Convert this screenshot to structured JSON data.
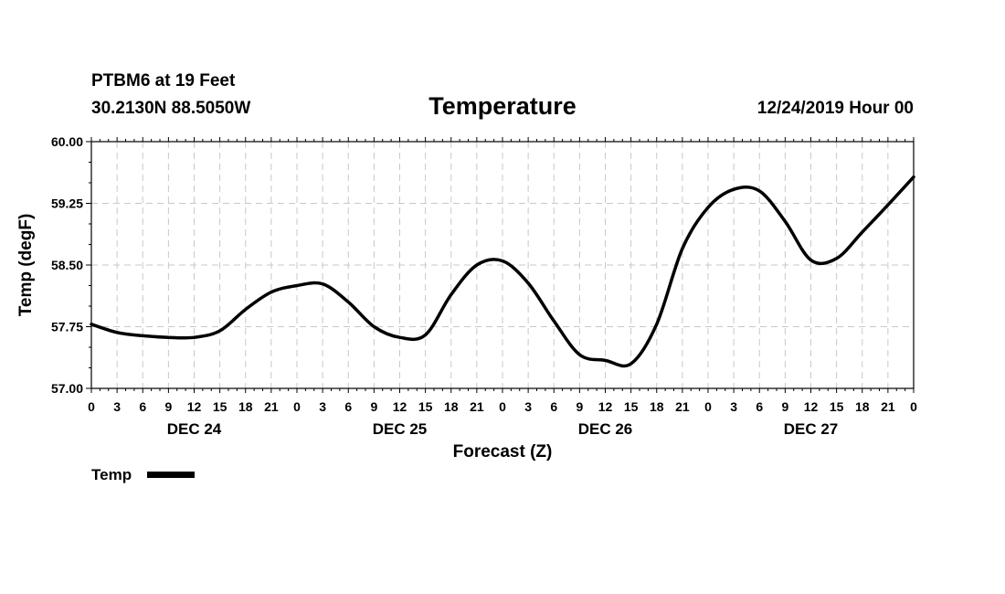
{
  "header": {
    "station": "PTBM6 at 19 Feet",
    "coords": "30.2130N 88.5050W",
    "title": "Temperature",
    "issued": "12/24/2019 Hour 00"
  },
  "chart_data": {
    "type": "line",
    "title": "Temperature",
    "xlabel": "Forecast (Z)",
    "ylabel": "Temp (degF)",
    "ylim": [
      57.0,
      60.0
    ],
    "yticks": [
      57.0,
      57.75,
      58.5,
      59.25,
      60.0
    ],
    "ytick_labels": [
      "57.00",
      "57.75",
      "58.50",
      "59.25",
      "60.00"
    ],
    "xlim": [
      0,
      96
    ],
    "xticks": [
      0,
      3,
      6,
      9,
      12,
      15,
      18,
      21,
      24,
      27,
      30,
      33,
      36,
      39,
      42,
      45,
      48,
      51,
      54,
      57,
      60,
      63,
      66,
      69,
      72,
      75,
      78,
      81,
      84,
      87,
      90,
      93,
      96
    ],
    "xtick_labels": [
      "0",
      "3",
      "6",
      "9",
      "12",
      "15",
      "18",
      "21",
      "0",
      "3",
      "6",
      "9",
      "12",
      "15",
      "18",
      "21",
      "0",
      "3",
      "6",
      "9",
      "12",
      "15",
      "18",
      "21",
      "0",
      "3",
      "6",
      "9",
      "12",
      "15",
      "18",
      "21",
      "0"
    ],
    "day_labels": [
      {
        "x": 12,
        "label": "DEC 24"
      },
      {
        "x": 36,
        "label": "DEC 25"
      },
      {
        "x": 60,
        "label": "DEC 26"
      },
      {
        "x": 84,
        "label": "DEC 27"
      }
    ],
    "grid": true,
    "legend_position": "bottom-left",
    "series": [
      {
        "name": "Temp",
        "color": "#000000",
        "x": [
          0,
          3,
          6,
          9,
          12,
          15,
          18,
          21,
          24,
          27,
          30,
          33,
          36,
          39,
          42,
          45,
          48,
          51,
          54,
          57,
          60,
          63,
          66,
          69,
          72,
          75,
          78,
          81,
          84,
          87,
          90,
          93,
          96
        ],
        "y": [
          57.78,
          57.68,
          57.64,
          57.62,
          57.62,
          57.7,
          57.96,
          58.17,
          58.25,
          58.27,
          58.05,
          57.75,
          57.62,
          57.65,
          58.14,
          58.5,
          58.55,
          58.28,
          57.82,
          57.41,
          57.34,
          57.3,
          57.78,
          58.7,
          59.2,
          59.42,
          59.4,
          59.03,
          58.56,
          58.58,
          58.9,
          59.23,
          59.57
        ]
      }
    ]
  }
}
